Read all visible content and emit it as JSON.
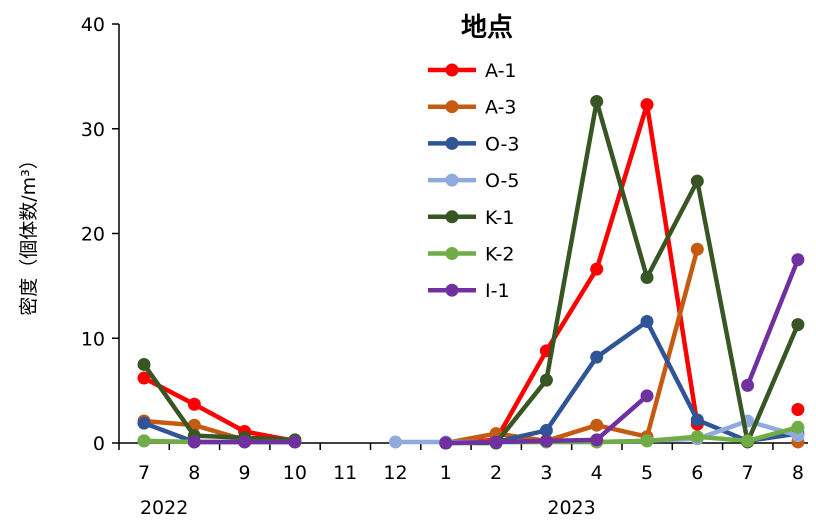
{
  "chart_data": {
    "type": "line",
    "x_tick_labels": [
      "7",
      "8",
      "9",
      "10",
      "11",
      "12",
      "1",
      "2",
      "3",
      "4",
      "5",
      "6",
      "7",
      "8"
    ],
    "year_labels": [
      {
        "label": "2022",
        "at_index": 0.4
      },
      {
        "label": "2023",
        "at_index": 8.5
      }
    ],
    "ylabel": "密度（個体数/m³）",
    "ylim": [
      0,
      40
    ],
    "yticks": [
      0,
      10,
      20,
      30,
      40
    ],
    "legend_title": "地点",
    "legend_position": "top-center",
    "grid": false,
    "series": [
      {
        "name": "A-1",
        "color": "#ff0000",
        "values": [
          6.2,
          3.7,
          1.1,
          0.2,
          null,
          null,
          0,
          0.3,
          8.8,
          16.6,
          32.3,
          1.8,
          null,
          3.2
        ]
      },
      {
        "name": "A-3",
        "color": "#c55a11",
        "values": [
          2.1,
          1.7,
          0.3,
          0.1,
          null,
          null,
          0,
          0.9,
          0.2,
          1.7,
          0.6,
          18.5,
          null,
          0.1
        ]
      },
      {
        "name": "O-3",
        "color": "#2f5597",
        "values": [
          1.9,
          0.1,
          0.1,
          0.1,
          null,
          null,
          0,
          0.1,
          1.2,
          8.2,
          11.6,
          2.2,
          0.2,
          0.9
        ]
      },
      {
        "name": "O-5",
        "color": "#8faadc",
        "values": [
          0.2,
          0.1,
          0.1,
          0.1,
          null,
          0.1,
          0.1,
          0.1,
          0.1,
          0.1,
          0.2,
          0.4,
          2.1,
          0.7
        ]
      },
      {
        "name": "K-1",
        "color": "#375623",
        "values": [
          7.5,
          0.7,
          0.5,
          0.3,
          null,
          null,
          0,
          0,
          6.0,
          32.6,
          15.8,
          25.0,
          0.1,
          11.3
        ]
      },
      {
        "name": "K-2",
        "color": "#70ad47",
        "values": [
          0.2,
          0.1,
          0.1,
          0.1,
          null,
          null,
          0,
          0.1,
          0.1,
          0.1,
          0.2,
          0.6,
          0.2,
          1.5
        ]
      },
      {
        "name": "I-1",
        "color": "#7030a0",
        "values": [
          null,
          0.1,
          0.1,
          0.1,
          null,
          null,
          0,
          0.1,
          0.2,
          0.3,
          4.5,
          null,
          5.5,
          17.5
        ]
      }
    ]
  }
}
